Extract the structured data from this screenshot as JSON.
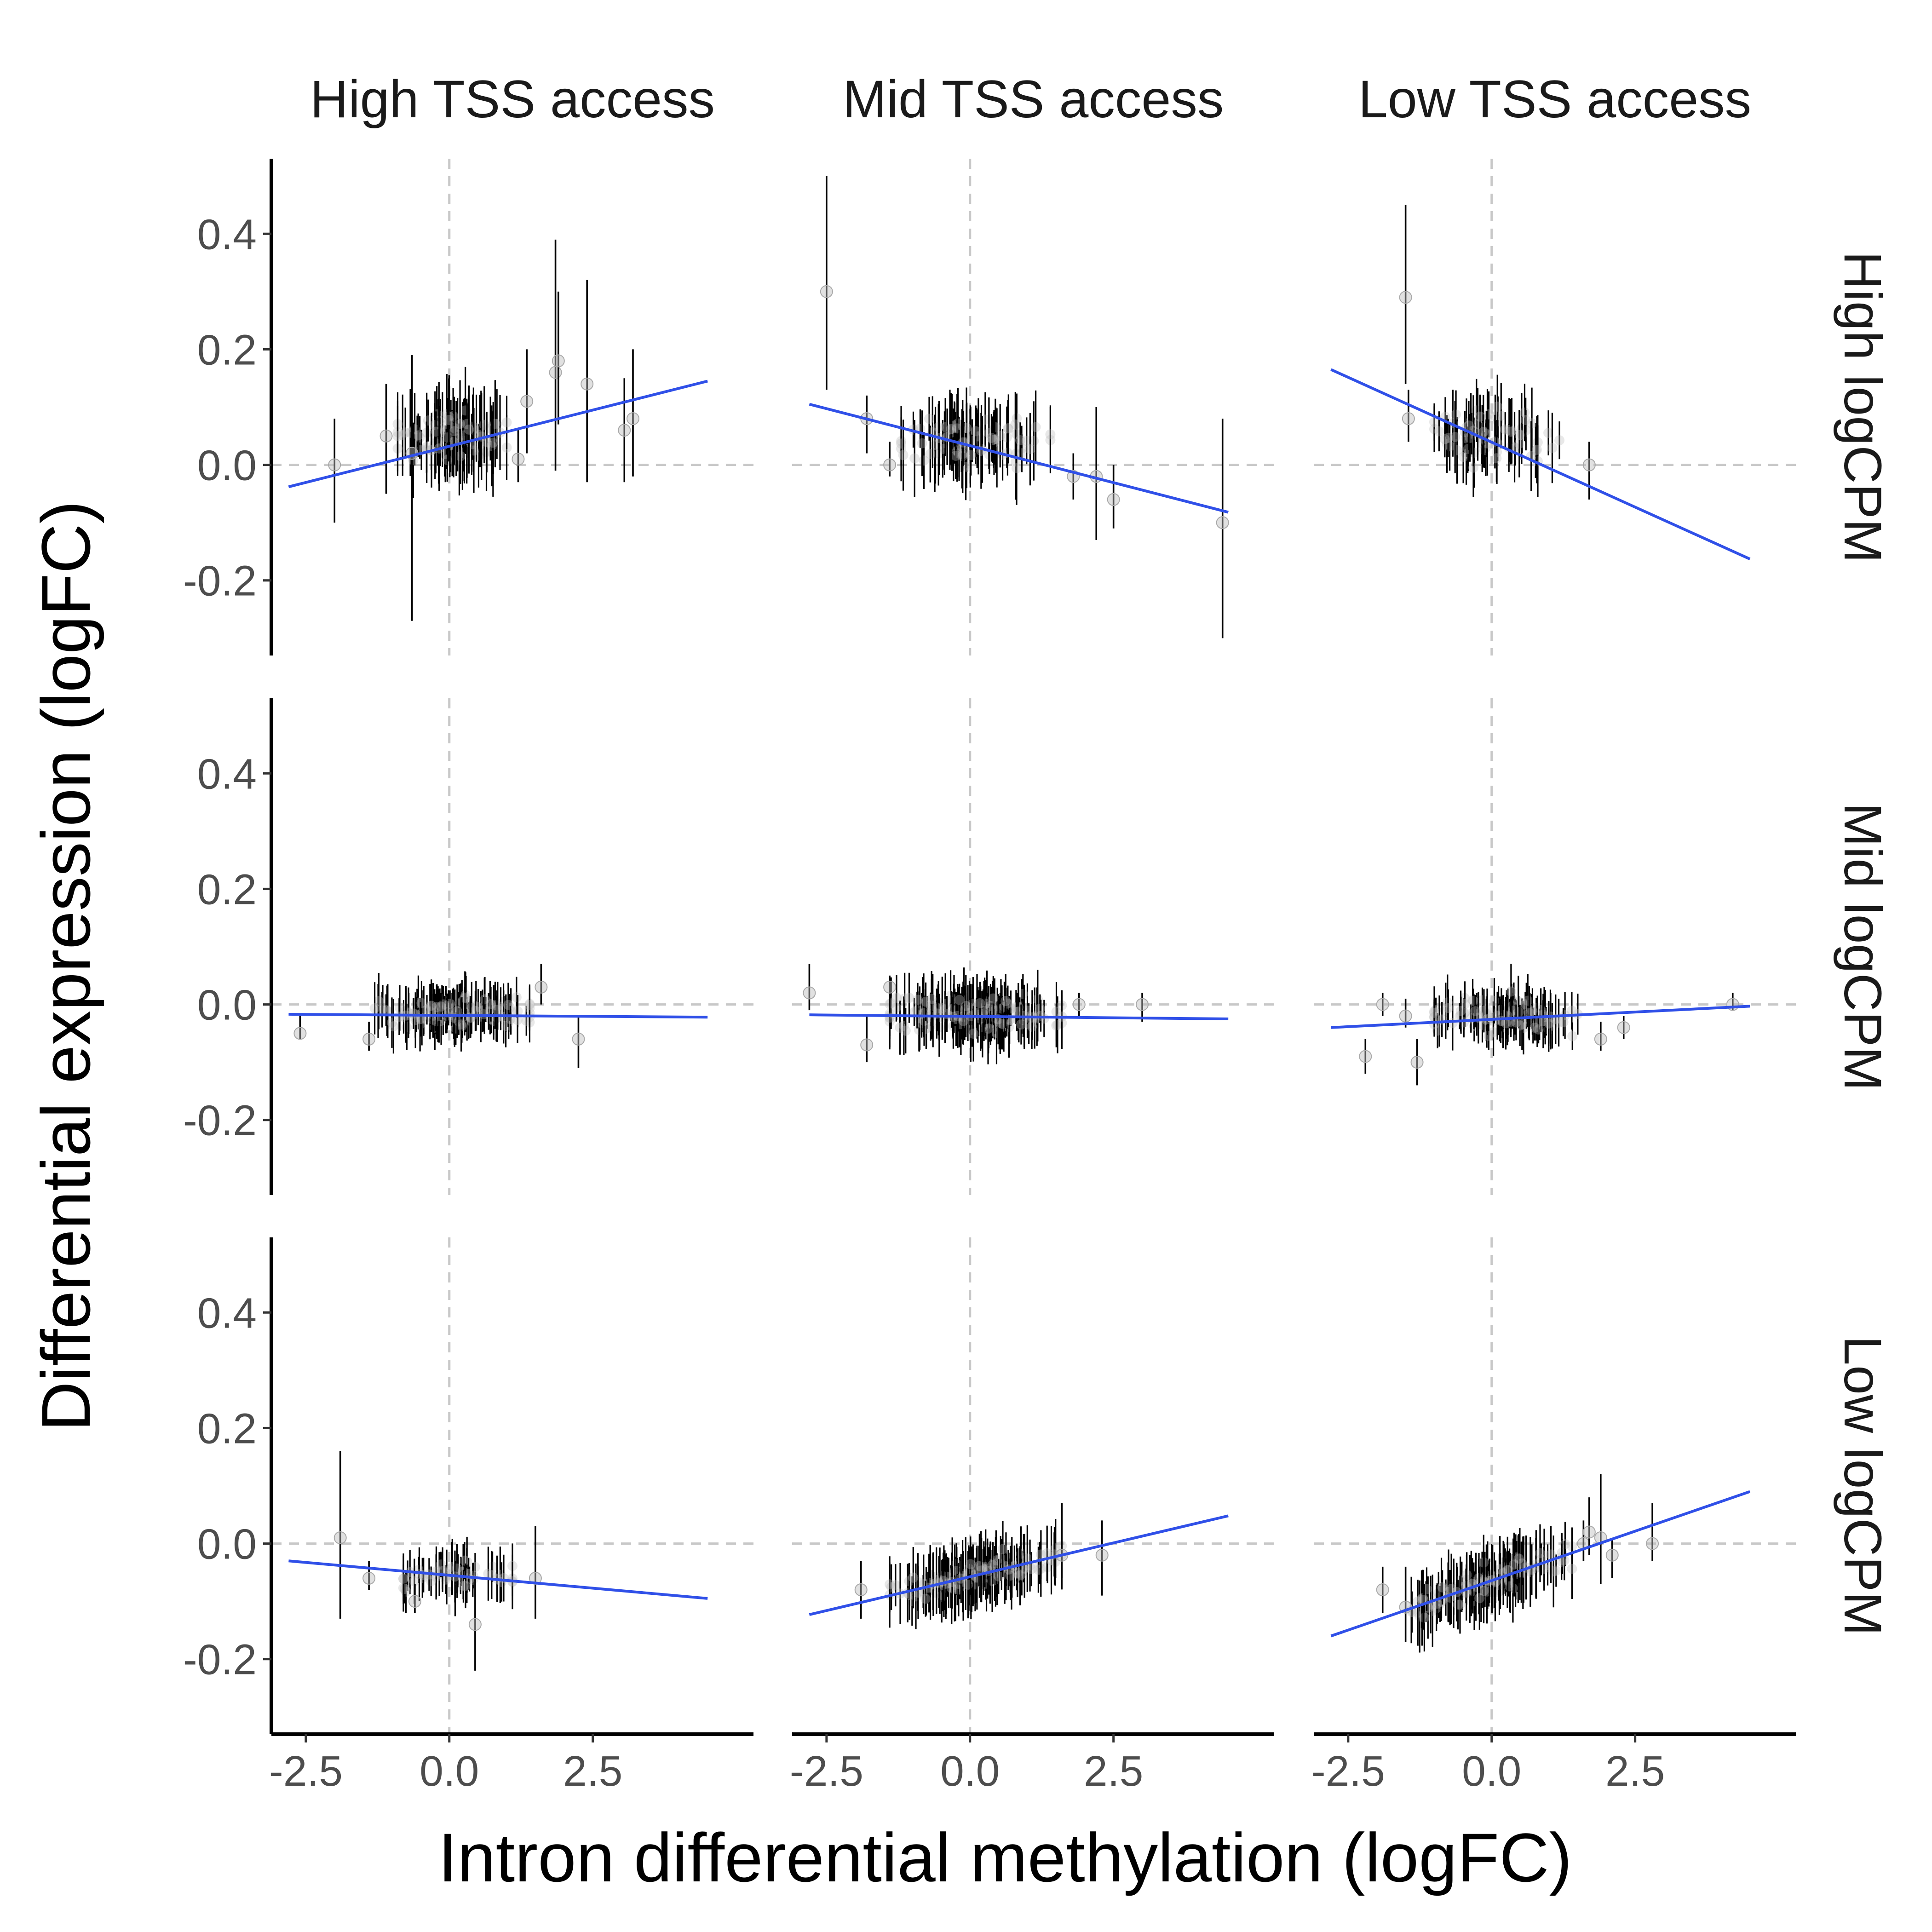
{
  "chart_data": {
    "type": "scatter",
    "xlabel": "Intron differential methylation (logFC)",
    "ylabel": "Differential expression (logFC)",
    "col_facets": [
      "High TSS access",
      "Mid TSS access",
      "Low TSS access"
    ],
    "row_facets": [
      "High logCPM",
      "Mid logCPM",
      "Low logCPM"
    ],
    "xlim": [
      -3.1,
      5.3
    ],
    "ylim": [
      -0.33,
      0.53
    ],
    "xticks": [
      -2.5,
      0.0,
      2.5
    ],
    "xtick_labels": [
      "-2.5",
      "0.0",
      "2.5"
    ],
    "yticks": [
      -0.2,
      0.0,
      0.2,
      0.4
    ],
    "ytick_labels": [
      "-0.2",
      "0.0",
      "0.2",
      "0.4"
    ],
    "reference_lines": {
      "x": 0,
      "y": 0
    },
    "grid": false,
    "colors": {
      "fit_line": "#3050e8",
      "error_bar": "#000000",
      "point": "#bdbdbd",
      "reference": "#c8c8c8",
      "axis": "#000000"
    },
    "panels": [
      {
        "row": "High logCPM",
        "col": "High TSS access",
        "fit": {
          "x": [
            -2.8,
            4.5
          ],
          "y": [
            -0.038,
            0.145
          ]
        },
        "points": [
          {
            "x": -2.0,
            "y": 0.0,
            "lo": -0.1,
            "hi": 0.08
          },
          {
            "x": -1.1,
            "y": 0.05,
            "lo": -0.05,
            "hi": 0.14
          },
          {
            "x": -0.65,
            "y": 0.02,
            "lo": -0.27,
            "hi": 0.19
          },
          {
            "x": 1.2,
            "y": 0.01,
            "lo": -0.03,
            "hi": 0.06
          },
          {
            "x": 1.35,
            "y": 0.11,
            "lo": 0.02,
            "hi": 0.2
          },
          {
            "x": 1.85,
            "y": 0.16,
            "lo": -0.01,
            "hi": 0.39
          },
          {
            "x": 1.9,
            "y": 0.18,
            "lo": 0.07,
            "hi": 0.3
          },
          {
            "x": 2.4,
            "y": 0.14,
            "lo": -0.03,
            "hi": 0.32
          },
          {
            "x": 3.05,
            "y": 0.06,
            "lo": -0.03,
            "hi": 0.15
          },
          {
            "x": 3.2,
            "y": 0.08,
            "lo": -0.02,
            "hi": 0.2
          }
        ],
        "cluster": {
          "x_range": [
            -0.9,
            1.0
          ],
          "y_center": 0.05,
          "y_spread": 0.035,
          "err": 0.055,
          "n": 90
        }
      },
      {
        "row": "High logCPM",
        "col": "Mid TSS access",
        "fit": {
          "x": [
            -2.8,
            4.5
          ],
          "y": [
            0.105,
            -0.082
          ]
        },
        "points": [
          {
            "x": -2.5,
            "y": 0.3,
            "lo": 0.13,
            "hi": 0.5
          },
          {
            "x": -1.8,
            "y": 0.08,
            "lo": 0.02,
            "hi": 0.12
          },
          {
            "x": -1.4,
            "y": 0.0,
            "lo": -0.02,
            "hi": 0.04
          },
          {
            "x": 1.8,
            "y": -0.02,
            "lo": -0.06,
            "hi": 0.02
          },
          {
            "x": 2.2,
            "y": -0.02,
            "lo": -0.13,
            "hi": 0.1
          },
          {
            "x": 2.5,
            "y": -0.06,
            "lo": -0.11,
            "hi": 0.0
          },
          {
            "x": 4.4,
            "y": -0.1,
            "lo": -0.3,
            "hi": 0.08
          }
        ],
        "cluster": {
          "x_range": [
            -1.2,
            1.4
          ],
          "y_center": 0.04,
          "y_spread": 0.035,
          "err": 0.05,
          "n": 100
        }
      },
      {
        "row": "High logCPM",
        "col": "Low TSS access",
        "fit": {
          "x": [
            -2.8,
            4.5
          ],
          "y": [
            0.165,
            -0.163
          ]
        },
        "points": [
          {
            "x": -1.5,
            "y": 0.29,
            "lo": 0.14,
            "hi": 0.45
          },
          {
            "x": -1.45,
            "y": 0.08,
            "lo": 0.04,
            "hi": 0.13
          },
          {
            "x": 1.7,
            "y": 0.0,
            "lo": -0.06,
            "hi": 0.04
          }
        ],
        "cluster": {
          "x_range": [
            -1.0,
            1.2
          ],
          "y_center": 0.045,
          "y_spread": 0.04,
          "err": 0.045,
          "n": 70
        }
      },
      {
        "row": "Mid logCPM",
        "col": "High TSS access",
        "fit": {
          "x": [
            -2.8,
            4.5
          ],
          "y": [
            -0.017,
            -0.022
          ]
        },
        "points": [
          {
            "x": -2.6,
            "y": -0.05,
            "lo": -0.06,
            "hi": -0.02
          },
          {
            "x": -1.4,
            "y": -0.06,
            "lo": -0.08,
            "hi": -0.03
          },
          {
            "x": 1.6,
            "y": 0.03,
            "lo": 0.0,
            "hi": 0.07
          },
          {
            "x": 2.25,
            "y": -0.06,
            "lo": -0.11,
            "hi": -0.02
          }
        ],
        "cluster": {
          "x_range": [
            -1.3,
            1.4
          ],
          "y_center": -0.015,
          "y_spread": 0.022,
          "err": 0.035,
          "n": 140
        }
      },
      {
        "row": "Mid logCPM",
        "col": "Mid TSS access",
        "fit": {
          "x": [
            -2.8,
            4.5
          ],
          "y": [
            -0.018,
            -0.025
          ]
        },
        "points": [
          {
            "x": -2.8,
            "y": 0.02,
            "lo": -0.01,
            "hi": 0.07
          },
          {
            "x": -1.8,
            "y": -0.07,
            "lo": -0.1,
            "hi": -0.02
          },
          {
            "x": -1.4,
            "y": 0.03,
            "lo": 0.01,
            "hi": 0.05
          },
          {
            "x": 1.9,
            "y": 0.0,
            "lo": -0.02,
            "hi": 0.02
          },
          {
            "x": 3.0,
            "y": 0.0,
            "lo": -0.03,
            "hi": 0.02
          }
        ],
        "cluster": {
          "x_range": [
            -1.4,
            1.6
          ],
          "y_center": -0.015,
          "y_spread": 0.025,
          "err": 0.04,
          "n": 170
        }
      },
      {
        "row": "Mid logCPM",
        "col": "Low TSS access",
        "fit": {
          "x": [
            -2.8,
            4.5
          ],
          "y": [
            -0.04,
            -0.003
          ]
        },
        "points": [
          {
            "x": -2.2,
            "y": -0.09,
            "lo": -0.12,
            "hi": -0.06
          },
          {
            "x": -1.9,
            "y": 0.0,
            "lo": -0.02,
            "hi": 0.02
          },
          {
            "x": -1.5,
            "y": -0.02,
            "lo": -0.04,
            "hi": 0.01
          },
          {
            "x": -1.3,
            "y": -0.1,
            "lo": -0.14,
            "hi": -0.06
          },
          {
            "x": 1.9,
            "y": -0.06,
            "lo": -0.08,
            "hi": -0.03
          },
          {
            "x": 2.3,
            "y": -0.04,
            "lo": -0.06,
            "hi": -0.02
          },
          {
            "x": 4.2,
            "y": 0.0,
            "lo": -0.01,
            "hi": 0.02
          }
        ],
        "cluster": {
          "x_range": [
            -1.0,
            1.5
          ],
          "y_center": -0.02,
          "y_spread": 0.025,
          "err": 0.035,
          "n": 110
        }
      },
      {
        "row": "Low logCPM",
        "col": "High TSS access",
        "fit": {
          "x": [
            -2.8,
            4.5
          ],
          "y": [
            -0.03,
            -0.095
          ]
        },
        "points": [
          {
            "x": -1.9,
            "y": 0.01,
            "lo": -0.13,
            "hi": 0.16
          },
          {
            "x": -1.4,
            "y": -0.06,
            "lo": -0.08,
            "hi": -0.03
          },
          {
            "x": -0.6,
            "y": -0.1,
            "lo": -0.12,
            "hi": -0.07
          },
          {
            "x": 0.45,
            "y": -0.14,
            "lo": -0.22,
            "hi": -0.06
          },
          {
            "x": 1.5,
            "y": -0.06,
            "lo": -0.13,
            "hi": 0.03
          }
        ],
        "cluster": {
          "x_range": [
            -0.8,
            1.1
          ],
          "y_center": -0.055,
          "y_spread": 0.02,
          "err": 0.035,
          "n": 55
        }
      },
      {
        "row": "Low logCPM",
        "col": "Mid TSS access",
        "fit": {
          "x": [
            -2.8,
            4.5
          ],
          "y": [
            -0.123,
            0.048
          ]
        },
        "points": [
          {
            "x": -1.9,
            "y": -0.08,
            "lo": -0.13,
            "hi": -0.03
          },
          {
            "x": 1.6,
            "y": -0.02,
            "lo": -0.06,
            "hi": 0.07
          },
          {
            "x": 2.3,
            "y": -0.02,
            "lo": -0.09,
            "hi": 0.04
          }
        ],
        "cluster": {
          "x_range": [
            -1.4,
            1.6
          ],
          "y_center": "fit",
          "y_spread": 0.02,
          "err": 0.045,
          "n": 150
        }
      },
      {
        "row": "Low logCPM",
        "col": "Low TSS access",
        "fit": {
          "x": [
            -2.8,
            4.5
          ],
          "y": [
            -0.16,
            0.09
          ]
        },
        "points": [
          {
            "x": -1.9,
            "y": -0.08,
            "lo": -0.12,
            "hi": -0.04
          },
          {
            "x": -1.5,
            "y": -0.11,
            "lo": -0.17,
            "hi": -0.04
          },
          {
            "x": 1.6,
            "y": 0.0,
            "lo": -0.03,
            "hi": 0.04
          },
          {
            "x": 1.7,
            "y": 0.02,
            "lo": -0.02,
            "hi": 0.08
          },
          {
            "x": 1.9,
            "y": 0.01,
            "lo": -0.07,
            "hi": 0.12
          },
          {
            "x": 2.1,
            "y": -0.02,
            "lo": -0.06,
            "hi": 0.01
          },
          {
            "x": 2.8,
            "y": 0.0,
            "lo": -0.03,
            "hi": 0.07
          }
        ],
        "cluster": {
          "x_range": [
            -1.4,
            1.4
          ],
          "y_center": "fit",
          "y_spread": 0.022,
          "err": 0.045,
          "n": 130
        }
      }
    ]
  }
}
